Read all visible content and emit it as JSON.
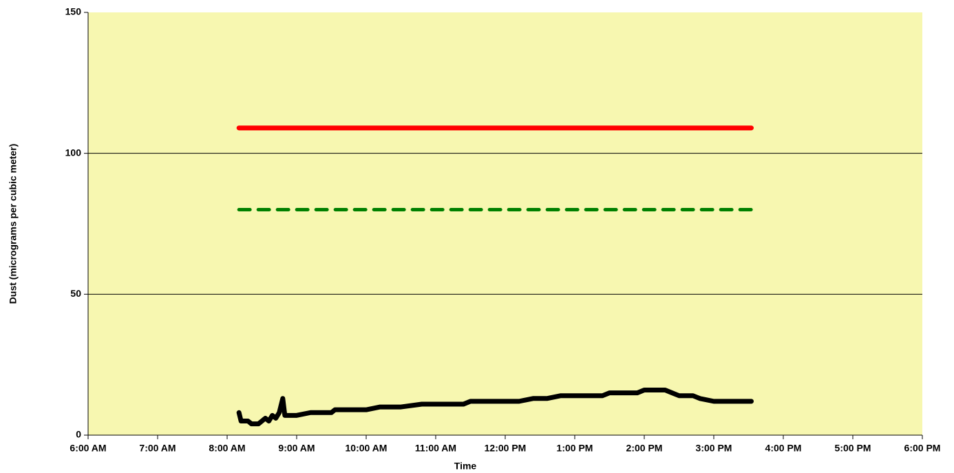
{
  "chart_data": {
    "type": "line",
    "xlabel": "Time",
    "ylabel": "Dust (micrograms per cubic meter)",
    "xlim": [
      6,
      18
    ],
    "xticks": [
      {
        "value": 6,
        "label": "6:00 AM"
      },
      {
        "value": 7,
        "label": "7:00 AM"
      },
      {
        "value": 8,
        "label": "8:00 AM"
      },
      {
        "value": 9,
        "label": "9:00 AM"
      },
      {
        "value": 10,
        "label": "10:00 AM"
      },
      {
        "value": 11,
        "label": "11:00 AM"
      },
      {
        "value": 12,
        "label": "12:00 PM"
      },
      {
        "value": 13,
        "label": "1:00 PM"
      },
      {
        "value": 14,
        "label": "2:00 PM"
      },
      {
        "value": 15,
        "label": "3:00 PM"
      },
      {
        "value": 16,
        "label": "4:00 PM"
      },
      {
        "value": 17,
        "label": "5:00 PM"
      },
      {
        "value": 18,
        "label": "6:00 PM"
      }
    ],
    "ylim": [
      0,
      150
    ],
    "yticks": [
      0,
      50,
      100,
      150
    ],
    "grid": true,
    "plot_background": "#f7f7b0",
    "series": [
      {
        "color": "#ff0000",
        "style": "solid",
        "x": [
          8.17,
          15.54
        ],
        "values": [
          109,
          109
        ]
      },
      {
        "color": "#008000",
        "style": "dashed",
        "x": [
          8.17,
          15.54
        ],
        "values": [
          80,
          80
        ]
      },
      {
        "color": "#000000",
        "style": "solid",
        "x": [
          8.17,
          8.2,
          8.3,
          8.35,
          8.45,
          8.5,
          8.55,
          8.6,
          8.65,
          8.7,
          8.75,
          8.8,
          8.83,
          9.0,
          9.2,
          9.5,
          9.55,
          9.8,
          10.0,
          10.2,
          10.5,
          10.8,
          11.0,
          11.4,
          11.5,
          11.8,
          12.0,
          12.2,
          12.4,
          12.6,
          12.8,
          13.0,
          13.2,
          13.4,
          13.5,
          13.7,
          13.9,
          14.0,
          14.2,
          14.3,
          14.4,
          14.5,
          14.7,
          14.8,
          15.0,
          15.2,
          15.4,
          15.54
        ],
        "values": [
          8,
          5,
          5,
          4,
          4,
          5,
          6,
          5,
          7,
          6,
          8,
          13,
          7,
          7,
          8,
          8,
          9,
          9,
          9,
          10,
          10,
          11,
          11,
          11,
          12,
          12,
          12,
          12,
          13,
          13,
          14,
          14,
          14,
          14,
          15,
          15,
          15,
          16,
          16,
          16,
          15,
          14,
          14,
          13,
          12,
          12,
          12,
          12
        ]
      }
    ]
  }
}
